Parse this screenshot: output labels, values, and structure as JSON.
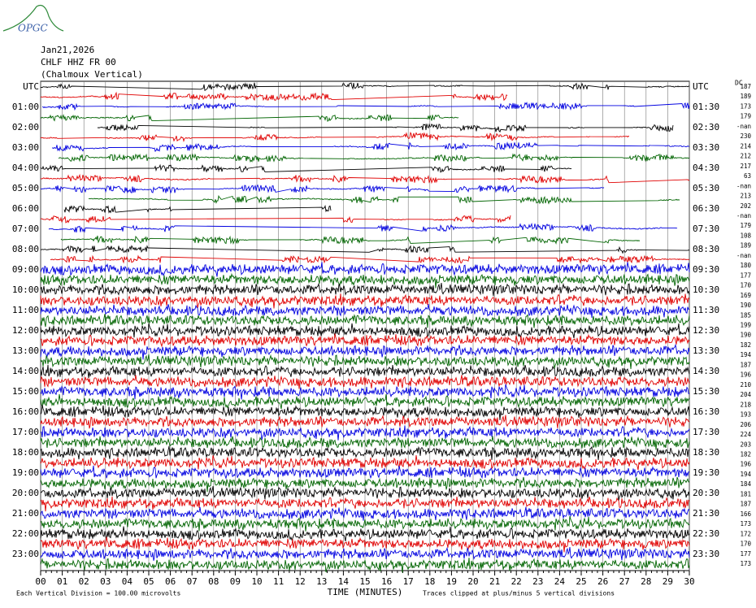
{
  "header": {
    "logo": "OPGC",
    "date": "Jan21,2026",
    "station": "CHLF HHZ FR 00",
    "location": "(Chalmoux Vertical)",
    "dc_header": "DC"
  },
  "left_labels": [
    "UTC",
    "01:00",
    "02:00",
    "03:00",
    "04:00",
    "05:00",
    "06:00",
    "07:00",
    "08:00",
    "09:00",
    "10:00",
    "11:00",
    "12:00",
    "13:00",
    "14:00",
    "15:00",
    "16:00",
    "17:00",
    "18:00",
    "19:00",
    "20:00",
    "21:00",
    "22:00",
    "23:00"
  ],
  "right_labels": [
    "UTC",
    "01:30",
    "02:30",
    "03:30",
    "04:30",
    "05:30",
    "06:30",
    "07:30",
    "08:30",
    "09:30",
    "10:30",
    "11:30",
    "12:30",
    "13:30",
    "14:30",
    "15:30",
    "16:30",
    "17:30",
    "18:30",
    "19:30",
    "20:30",
    "21:30",
    "22:30",
    "23:30"
  ],
  "dc_values": [
    "187",
    "189",
    "173",
    "179",
    "-nan",
    "230",
    "214",
    "212",
    "217",
    "63",
    "-nan",
    "213",
    "202",
    "-nan",
    "179",
    "108",
    "189",
    "-nan",
    "180",
    "177",
    "170",
    "169",
    "190",
    "185",
    "199",
    "190",
    "182",
    "194",
    "187",
    "196",
    "210",
    "204",
    "218",
    "193",
    "206",
    "224",
    "203",
    "182",
    "196",
    "194",
    "184",
    "181",
    "187",
    "166",
    "173",
    "172",
    "170",
    "177",
    "173"
  ],
  "trace_colors": [
    "#000000",
    "#e00000",
    "#0000e0",
    "#006400"
  ],
  "x_axis": {
    "label": "TIME (MINUTES)",
    "xlim": [
      0,
      30
    ],
    "ticks": [
      {
        "value": 0,
        "label": "00"
      },
      {
        "value": 1,
        "label": "01"
      },
      {
        "value": 2,
        "label": "02"
      },
      {
        "value": 3,
        "label": "03"
      },
      {
        "value": 4,
        "label": "04"
      },
      {
        "value": 5,
        "label": "05"
      },
      {
        "value": 6,
        "label": "06"
      },
      {
        "value": 7,
        "label": "07"
      },
      {
        "value": 8,
        "label": "08"
      },
      {
        "value": 9,
        "label": "09"
      },
      10,
      11,
      12,
      13,
      14,
      15,
      16,
      17,
      18,
      19,
      20,
      21,
      22,
      23,
      24,
      25,
      26,
      27,
      28,
      29,
      30
    ]
  },
  "footer": {
    "scale_note": "Each Vertical Division =  100.00 microvolts",
    "clip_note": "Traces clipped at plus/minus 5 vertical divisions"
  }
}
